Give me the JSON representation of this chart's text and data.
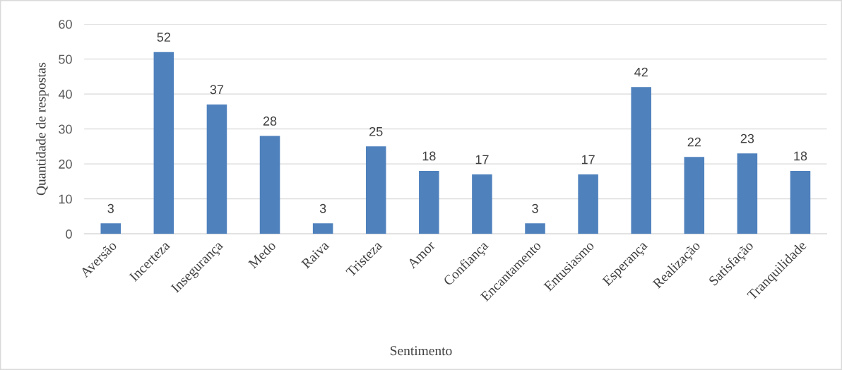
{
  "chart_data": {
    "type": "bar",
    "xlabel": "Sentimento",
    "ylabel": "Quantidade de respostas",
    "categories": [
      "Aversão",
      "Incerteza",
      "Insegurança",
      "Medo",
      "Raiva",
      "Tristeza",
      "Amor",
      "Confiança",
      "Encantamento",
      "Entusiasmo",
      "Esperança",
      "Realização",
      "Satisfação",
      "Tranquilidade"
    ],
    "values": [
      3,
      52,
      37,
      28,
      3,
      25,
      18,
      17,
      3,
      17,
      42,
      22,
      23,
      18
    ],
    "color": "#4f81bd",
    "ylim": [
      0,
      60
    ],
    "yticks": [
      0,
      10,
      20,
      30,
      40,
      50,
      60
    ],
    "grid": "y",
    "data_labels": true
  }
}
